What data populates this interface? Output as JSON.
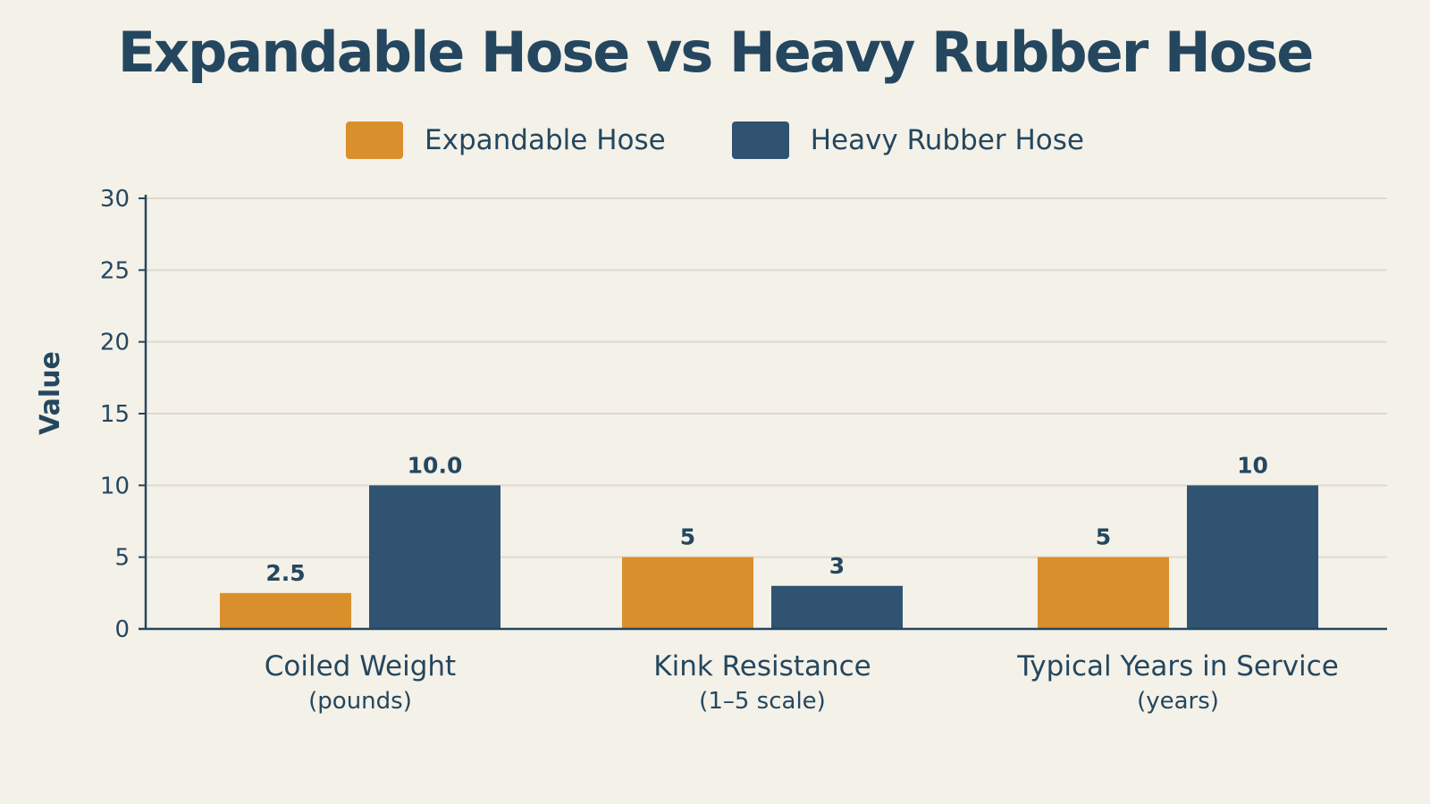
{
  "chart_data": {
    "type": "bar",
    "title": "Expandable Hose vs Heavy Rubber Hose",
    "ylabel": "Value",
    "xlabel": "",
    "ylim": [
      0,
      30
    ],
    "yticks": [
      0,
      5,
      10,
      15,
      20,
      25,
      30
    ],
    "grid": true,
    "legend_position": "top-center",
    "categories": [
      {
        "name": "Coiled Weight",
        "unit": "(pounds)"
      },
      {
        "name": "Kink Resistance",
        "unit": "(1–5 scale)"
      },
      {
        "name": "Typical Years in Service",
        "unit": "(years)"
      }
    ],
    "series": [
      {
        "name": "Expandable Hose",
        "color": "#d98f2b",
        "values": [
          2.5,
          5,
          5
        ],
        "labels": [
          "2.5",
          "5",
          "5"
        ]
      },
      {
        "name": "Heavy Rubber Hose",
        "color": "#2f5370",
        "values": [
          10.0,
          3,
          10
        ],
        "labels": [
          "10.0",
          "3",
          "10"
        ]
      }
    ]
  },
  "colors": {
    "background": "#f4f1e8",
    "text": "#24475f",
    "grid": "#dedad0",
    "axis": "#24475f"
  }
}
